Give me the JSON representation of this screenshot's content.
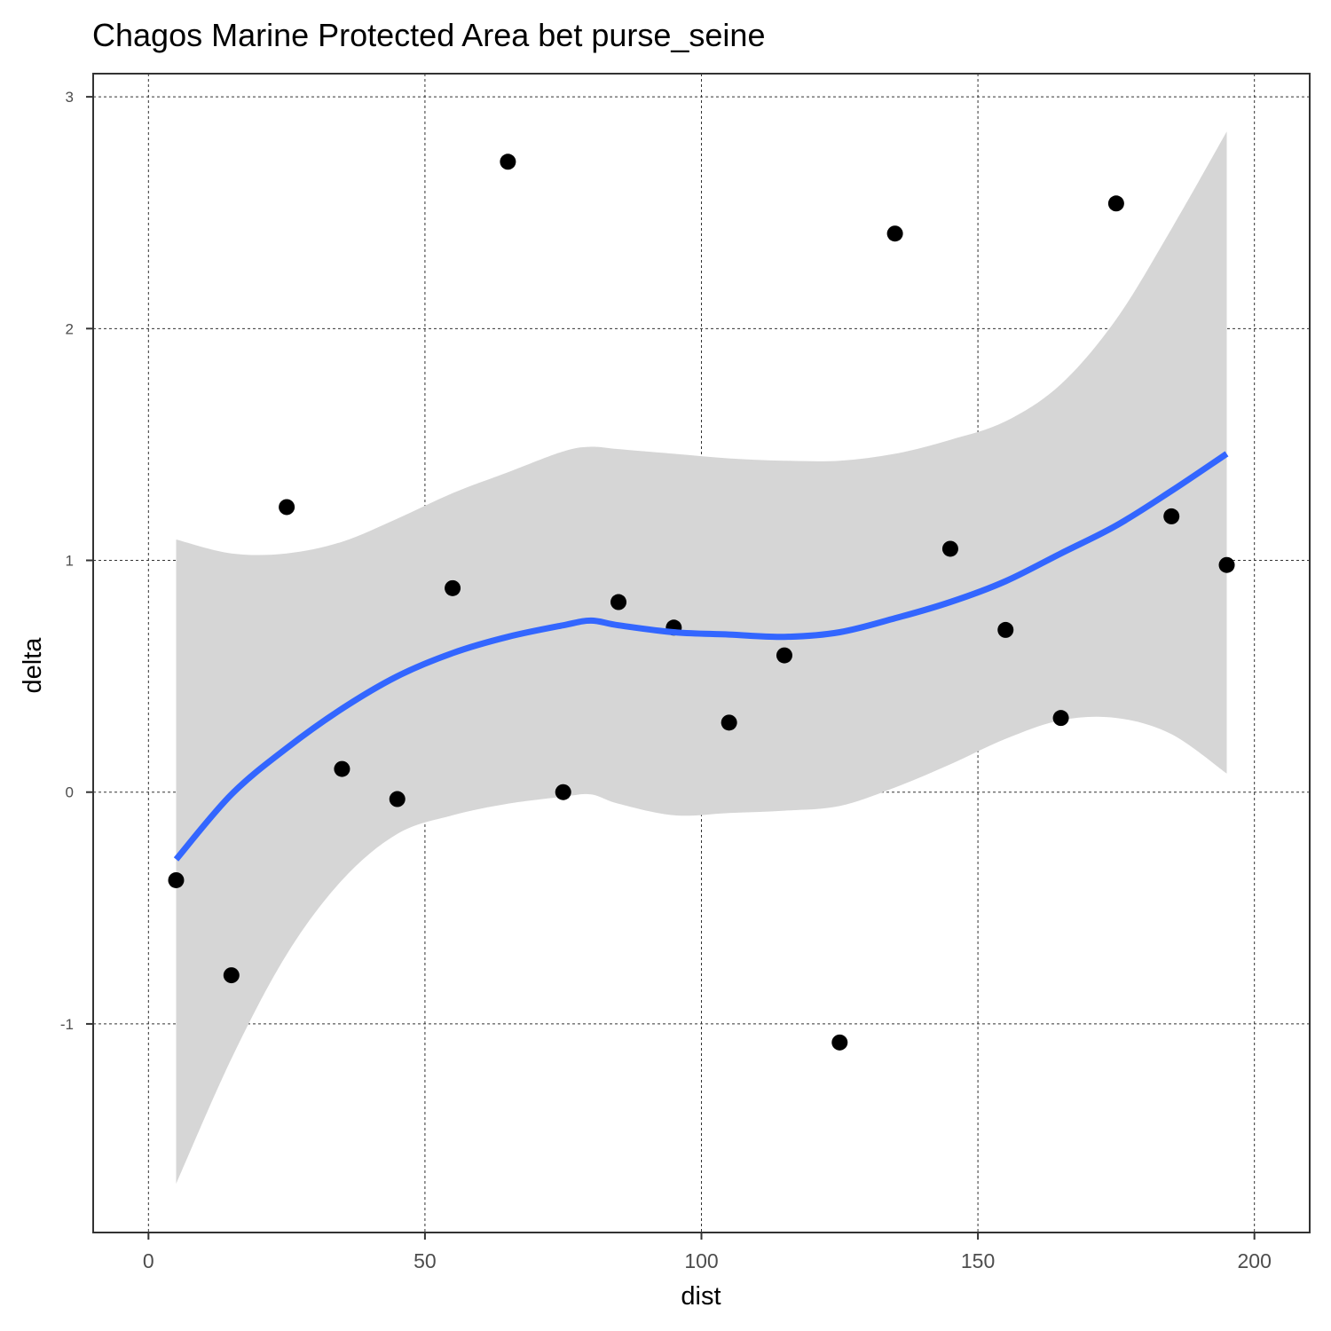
{
  "chart_data": {
    "type": "scatter",
    "title": "Chagos Marine Protected Area bet purse_seine",
    "xlabel": "dist",
    "ylabel": "delta",
    "xlim": [
      -10,
      210
    ],
    "ylim": [
      -1.9,
      3.1
    ],
    "x_ticks": [
      0,
      50,
      100,
      150,
      200
    ],
    "y_ticks": [
      -1,
      0,
      1,
      2,
      3
    ],
    "grid": true,
    "grid_style": "dashed",
    "colors": {
      "points": "#000000",
      "smooth_line": "#3366ff",
      "confidence_band": "#d6d6d6"
    },
    "points": [
      {
        "x": 5,
        "y": -0.38
      },
      {
        "x": 15,
        "y": -0.79
      },
      {
        "x": 25,
        "y": 1.23
      },
      {
        "x": 35,
        "y": 0.1
      },
      {
        "x": 45,
        "y": -0.03
      },
      {
        "x": 55,
        "y": 0.88
      },
      {
        "x": 65,
        "y": 2.72
      },
      {
        "x": 75,
        "y": 0.0
      },
      {
        "x": 85,
        "y": 0.82
      },
      {
        "x": 95,
        "y": 0.71
      },
      {
        "x": 105,
        "y": 0.3
      },
      {
        "x": 115,
        "y": 0.59
      },
      {
        "x": 125,
        "y": -1.08
      },
      {
        "x": 135,
        "y": 2.41
      },
      {
        "x": 145,
        "y": 1.05
      },
      {
        "x": 155,
        "y": 0.7
      },
      {
        "x": 165,
        "y": 0.32
      },
      {
        "x": 175,
        "y": 2.54
      },
      {
        "x": 185,
        "y": 1.19
      },
      {
        "x": 195,
        "y": 0.98
      }
    ],
    "smooth": {
      "x": [
        5,
        15,
        25,
        35,
        45,
        55,
        65,
        75,
        80,
        85,
        95,
        105,
        115,
        125,
        135,
        145,
        155,
        165,
        175,
        185,
        195
      ],
      "y": [
        -0.29,
        -0.01,
        0.19,
        0.36,
        0.5,
        0.6,
        0.67,
        0.72,
        0.74,
        0.72,
        0.69,
        0.68,
        0.67,
        0.69,
        0.75,
        0.82,
        0.91,
        1.03,
        1.15,
        1.3,
        1.46
      ],
      "lower": [
        -1.69,
        -1.15,
        -0.7,
        -0.38,
        -0.18,
        -0.1,
        -0.05,
        -0.02,
        -0.01,
        -0.05,
        -0.1,
        -0.09,
        -0.08,
        -0.06,
        0.02,
        0.12,
        0.23,
        0.31,
        0.32,
        0.25,
        0.08
      ],
      "upper": [
        1.09,
        1.03,
        1.03,
        1.08,
        1.18,
        1.29,
        1.38,
        1.47,
        1.49,
        1.48,
        1.46,
        1.44,
        1.43,
        1.43,
        1.46,
        1.52,
        1.6,
        1.76,
        2.04,
        2.43,
        2.85
      ]
    }
  }
}
